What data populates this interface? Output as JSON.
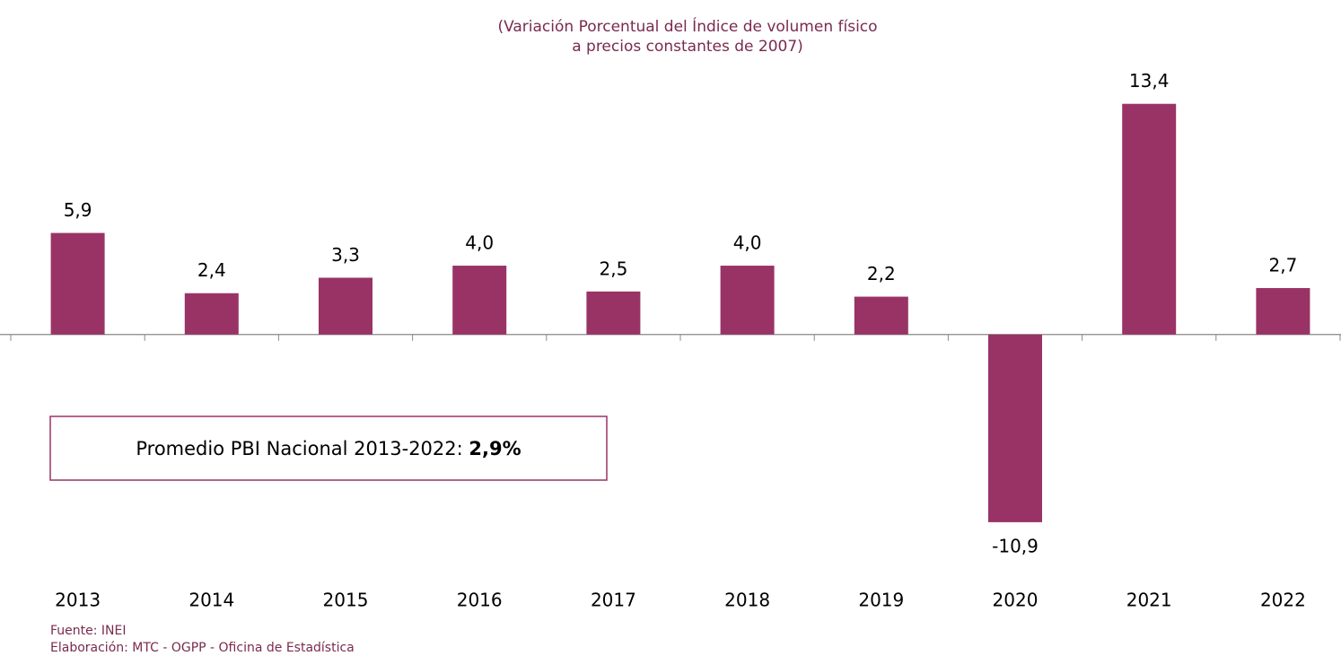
{
  "chart_data": {
    "type": "bar",
    "subtitle": [
      "(Variación Porcentual del Índice de volumen físico",
      "a precios constantes de 2007)"
    ],
    "categories": [
      "2013",
      "2014",
      "2015",
      "2016",
      "2017",
      "2018",
      "2019",
      "2020",
      "2021",
      "2022"
    ],
    "values": [
      5.9,
      2.4,
      3.3,
      4.0,
      2.5,
      4.0,
      2.2,
      -10.9,
      13.4,
      2.7
    ],
    "value_labels": [
      "5,9",
      "2,4",
      "3,3",
      "4,0",
      "2,5",
      "4,0",
      "2,2",
      "-10,9",
      "13,4",
      "2,7"
    ],
    "color": "#993366",
    "ylim": [
      -12,
      15
    ],
    "annotation": [
      "Promedio PBI Nacional 2013-2022: ",
      "2,9%"
    ],
    "notes": [
      "Fuente: INEI",
      "Elaboración: MTC - OGPP - Oficina de Estadística"
    ]
  }
}
